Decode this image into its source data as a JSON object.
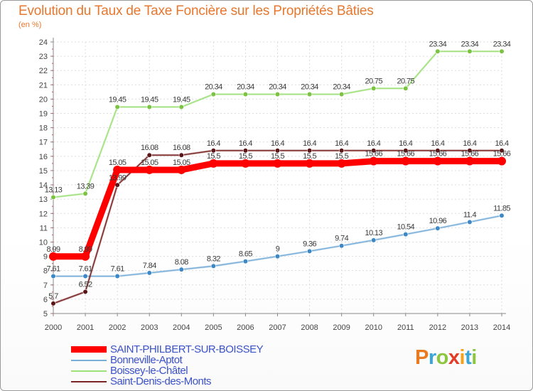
{
  "header": {
    "title": "Evolution du Taux de Taxe Foncière sur les Propriétés Bâties",
    "unit": "(en %)"
  },
  "logo": {
    "text": "Proxiti",
    "colors": [
      "#e87b22",
      "#3aa5d6",
      "#8cc63f",
      "#e23d28",
      "#f5a11a",
      "#3aa5d6",
      "#8cc63f"
    ]
  },
  "legend": [
    {
      "name": "SAINT-PHILBERT-SUR-BOISSEY",
      "color": "#ff0000"
    },
    {
      "name": "Bonneville-Aptot",
      "color": "#79aed9"
    },
    {
      "name": "Boissey-le-Châtel",
      "color": "#9ee07a"
    },
    {
      "name": "Saint-Denis-des-Monts",
      "color": "#7a2626"
    }
  ],
  "chart_data": {
    "type": "line",
    "title": "Evolution du Taux de Taxe Foncière sur les Propriétés Bâties",
    "ylabel": "(en %)",
    "xlabel": "",
    "x": [
      2000,
      2001,
      2002,
      2003,
      2004,
      2005,
      2006,
      2007,
      2008,
      2009,
      2010,
      2011,
      2012,
      2013,
      2014
    ],
    "ylim": [
      5,
      24
    ],
    "yticks": [
      5,
      6,
      7,
      8,
      9,
      10,
      11,
      12,
      13,
      14,
      15,
      16,
      17,
      18,
      19,
      20,
      21,
      22,
      23,
      24
    ],
    "grid": true,
    "series": [
      {
        "name": "Boissey-le-Châtel",
        "color": "#9ee07a",
        "marker": "#7cc243",
        "values": [
          13.13,
          13.39,
          19.45,
          19.45,
          19.45,
          20.34,
          20.34,
          20.34,
          20.34,
          20.34,
          20.75,
          20.75,
          23.34,
          23.34,
          23.34
        ],
        "labels": [
          "13.13",
          "13.39",
          "19.45",
          "19.45",
          "19.45",
          "20.34",
          "20.34",
          "20.34",
          "20.34",
          "20.34",
          "20.75",
          "20.75",
          "23.34",
          "23.34",
          "23.34"
        ]
      },
      {
        "name": "Bonneville-Aptot",
        "color": "#79aed9",
        "marker": "#3d88c5",
        "values": [
          7.61,
          7.61,
          7.61,
          7.84,
          8.08,
          8.32,
          8.65,
          9,
          9.36,
          9.74,
          10.13,
          10.54,
          10.96,
          11.4,
          11.85
        ],
        "labels": [
          "7.61",
          "7.61",
          "7.61",
          "7.84",
          "8.08",
          "8.32",
          "8.65",
          "9",
          "9.36",
          "9.74",
          "10.13",
          "10.54",
          "10.96",
          "11.4",
          "11.85"
        ]
      },
      {
        "name": "Saint-Denis-des-Monts",
        "color": "#7a2626",
        "marker": "#5a1616",
        "values": [
          5.7,
          6.52,
          13.99,
          16.08,
          16.08,
          16.4,
          16.4,
          16.4,
          16.4,
          16.4,
          16.4,
          16.4,
          16.4,
          16.4,
          16.4
        ],
        "labels": [
          "5.7",
          "6.52",
          "13.99",
          "16.08",
          "16.08",
          "16.4",
          "16.4",
          "16.4",
          "16.4",
          "16.4",
          "16.4",
          "16.4",
          "16.4",
          "16.4",
          "16.4"
        ]
      },
      {
        "name": "SAINT-PHILBERT-SUR-BOISSEY",
        "color": "#ff0000",
        "marker": "#ff0000",
        "values": [
          8.99,
          8.99,
          15.05,
          15.05,
          15.05,
          15.5,
          15.5,
          15.5,
          15.5,
          15.5,
          15.66,
          15.66,
          15.66,
          15.66,
          15.66
        ],
        "labels": [
          "8.99",
          "8.99",
          "15.05",
          "15.05",
          "15.05",
          "15.5",
          "15.5",
          "15.5",
          "15.5",
          "15.5",
          "15.66",
          "15.66",
          "15.66",
          "15.66",
          "15.66"
        ]
      }
    ]
  }
}
